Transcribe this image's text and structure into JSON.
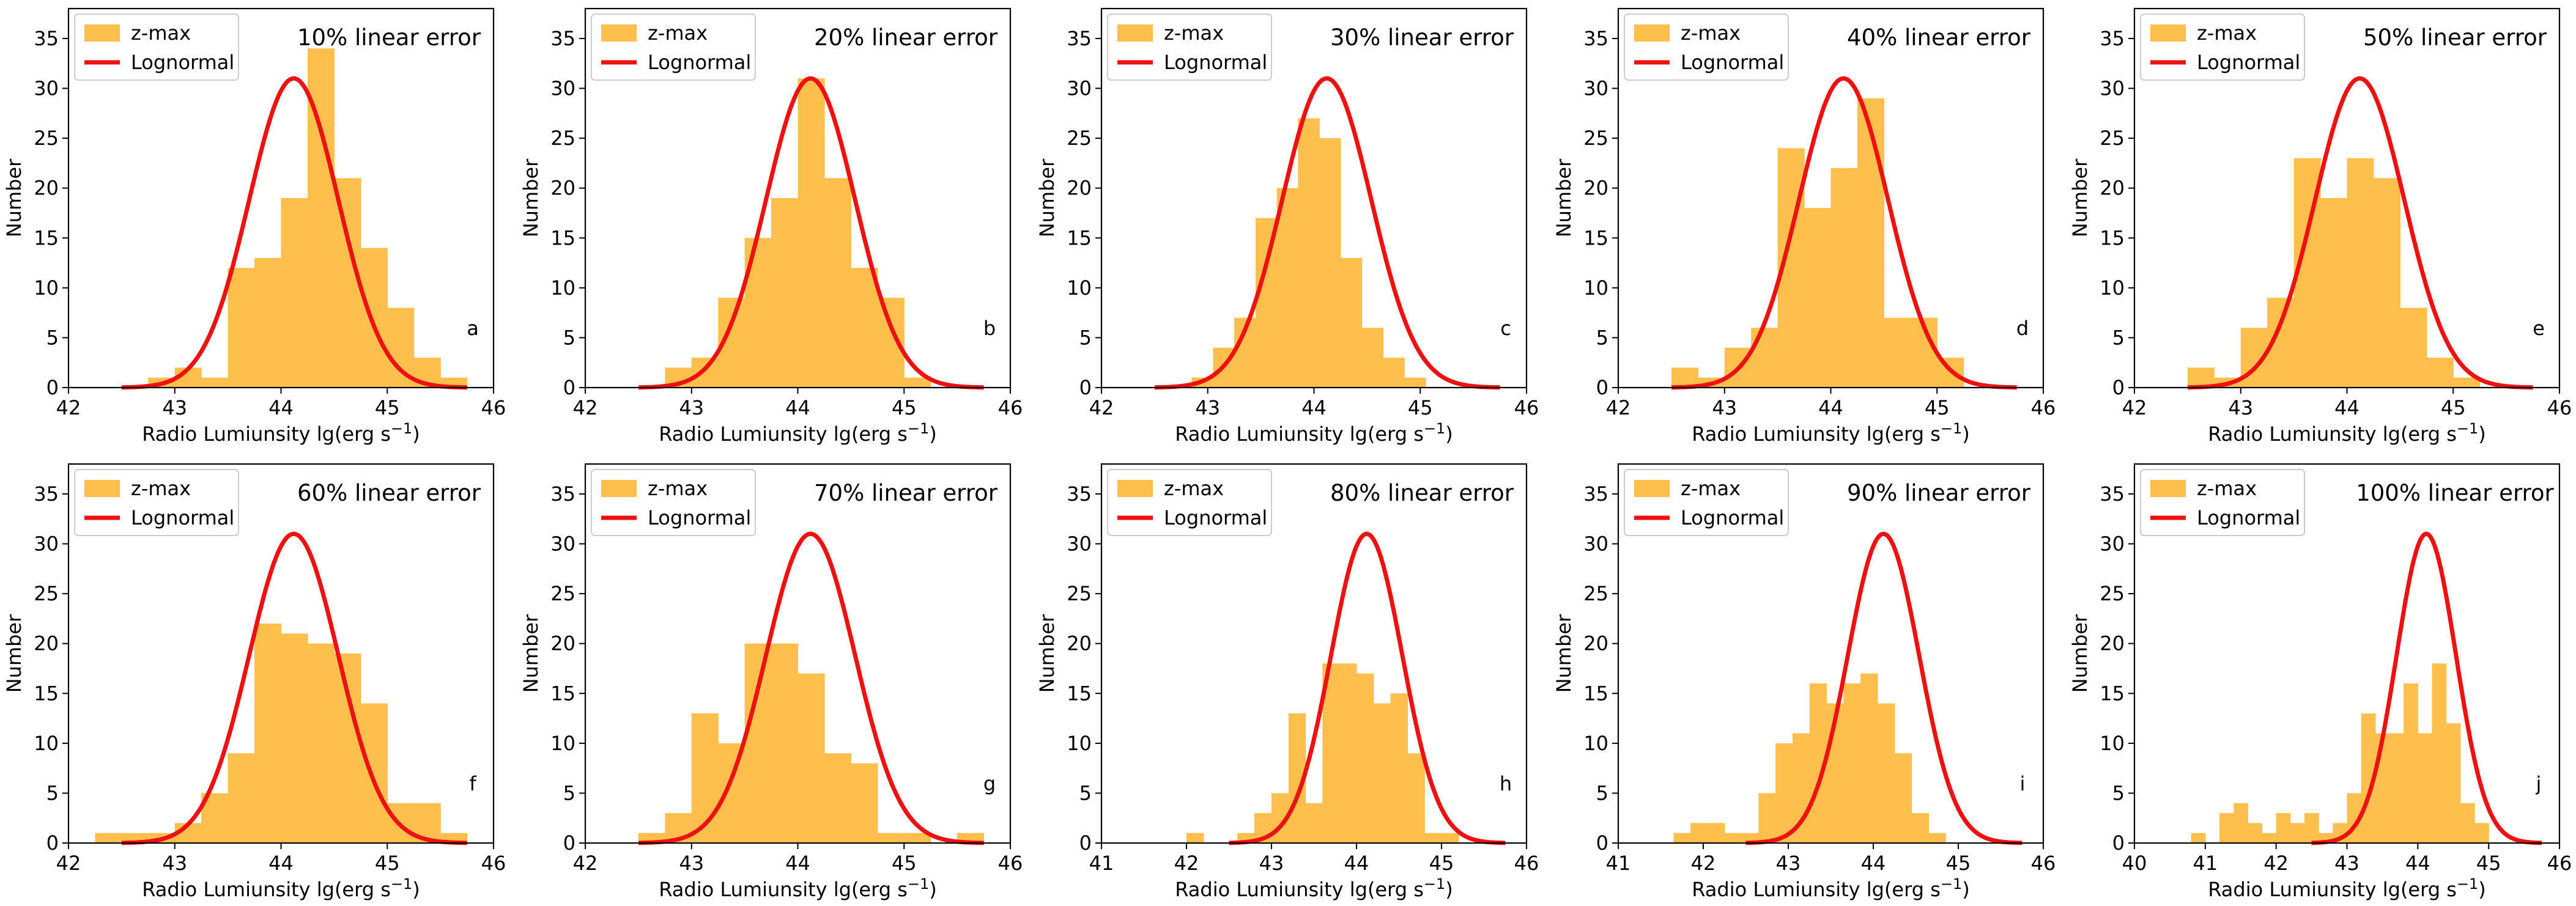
{
  "figure": {
    "rows": 2,
    "cols": 5
  },
  "chart_data": [
    {
      "type": "bar",
      "panel": "a",
      "title": "10% linear error",
      "xlabel": "Radio Lumiunsity lg(erg s⁻¹)",
      "ylabel": "Number",
      "xlim": [
        42,
        46
      ],
      "ylim": [
        0,
        38
      ],
      "xticks": [
        42,
        43,
        44,
        45,
        46
      ],
      "yticks": [
        0,
        5,
        10,
        15,
        20,
        25,
        30,
        35
      ],
      "legend": [
        "z-max",
        "Lognormal"
      ],
      "legend_position": "top-left",
      "bins_start": 42.5,
      "bin_width": 0.25,
      "values": [
        0,
        1,
        2,
        1,
        12,
        13,
        19,
        34,
        21,
        14,
        8,
        3,
        1
      ],
      "curve": {
        "name": "Lognormal",
        "peak": 31,
        "mu": 44.12,
        "sigma": 0.42,
        "x_range": [
          42.5,
          45.75
        ]
      }
    },
    {
      "type": "bar",
      "panel": "b",
      "title": "20% linear error",
      "xlabel": "Radio Lumiunsity lg(erg s⁻¹)",
      "ylabel": "Number",
      "xlim": [
        42,
        46
      ],
      "ylim": [
        0,
        38
      ],
      "xticks": [
        42,
        43,
        44,
        45,
        46
      ],
      "yticks": [
        0,
        5,
        10,
        15,
        20,
        25,
        30,
        35
      ],
      "legend": [
        "z-max",
        "Lognormal"
      ],
      "legend_position": "top-left",
      "bins_start": 42.5,
      "bin_width": 0.25,
      "values": [
        0,
        2,
        3,
        9,
        15,
        19,
        31,
        21,
        12,
        9,
        1
      ],
      "curve": {
        "name": "Lognormal",
        "peak": 31,
        "mu": 44.12,
        "sigma": 0.42,
        "x_range": [
          42.5,
          45.75
        ]
      }
    },
    {
      "type": "bar",
      "panel": "c",
      "title": "30% linear error",
      "xlabel": "Radio Lumiunsity lg(erg s⁻¹)",
      "ylabel": "Number",
      "xlim": [
        42,
        46
      ],
      "ylim": [
        0,
        38
      ],
      "xticks": [
        42,
        43,
        44,
        45,
        46
      ],
      "yticks": [
        0,
        5,
        10,
        15,
        20,
        25,
        30,
        35
      ],
      "legend": [
        "z-max",
        "Lognormal"
      ],
      "legend_position": "top-left",
      "bins_start": 42.85,
      "bin_width": 0.2,
      "values": [
        1,
        4,
        7,
        17,
        20,
        27,
        25,
        13,
        6,
        3,
        1
      ],
      "curve": {
        "name": "Lognormal",
        "peak": 31,
        "mu": 44.12,
        "sigma": 0.42,
        "x_range": [
          42.5,
          45.75
        ]
      }
    },
    {
      "type": "bar",
      "panel": "d",
      "title": "40% linear error",
      "xlabel": "Radio Lumiunsity lg(erg s⁻¹)",
      "ylabel": "Number",
      "xlim": [
        42,
        46
      ],
      "ylim": [
        0,
        38
      ],
      "xticks": [
        42,
        43,
        44,
        45,
        46
      ],
      "yticks": [
        0,
        5,
        10,
        15,
        20,
        25,
        30,
        35
      ],
      "legend": [
        "z-max",
        "Lognormal"
      ],
      "legend_position": "top-left",
      "bins_start": 42.5,
      "bin_width": 0.25,
      "values": [
        2,
        1,
        4,
        6,
        24,
        18,
        22,
        29,
        7,
        7,
        3
      ],
      "curve": {
        "name": "Lognormal",
        "peak": 31,
        "mu": 44.12,
        "sigma": 0.42,
        "x_range": [
          42.5,
          45.75
        ]
      }
    },
    {
      "type": "bar",
      "panel": "e",
      "title": "50% linear error",
      "xlabel": "Radio Lumiunsity lg(erg s⁻¹)",
      "ylabel": "Number",
      "xlim": [
        42,
        46
      ],
      "ylim": [
        0,
        38
      ],
      "xticks": [
        42,
        43,
        44,
        45,
        46
      ],
      "yticks": [
        0,
        5,
        10,
        15,
        20,
        25,
        30,
        35
      ],
      "legend": [
        "z-max",
        "Lognormal"
      ],
      "legend_position": "top-left",
      "bins_start": 42.5,
      "bin_width": 0.25,
      "values": [
        2,
        1,
        6,
        9,
        23,
        19,
        23,
        21,
        8,
        3,
        1
      ],
      "curve": {
        "name": "Lognormal",
        "peak": 31,
        "mu": 44.12,
        "sigma": 0.42,
        "x_range": [
          42.5,
          45.75
        ]
      }
    },
    {
      "type": "bar",
      "panel": "f",
      "title": "60% linear error",
      "xlabel": "Radio Lumiunsity lg(erg s⁻¹)",
      "ylabel": "Number",
      "xlim": [
        42,
        46
      ],
      "ylim": [
        0,
        38
      ],
      "xticks": [
        42,
        43,
        44,
        45,
        46
      ],
      "yticks": [
        0,
        5,
        10,
        15,
        20,
        25,
        30,
        35
      ],
      "legend": [
        "z-max",
        "Lognormal"
      ],
      "legend_position": "top-left",
      "bins_start": 42.25,
      "bin_width": 0.25,
      "values": [
        1,
        1,
        1,
        2,
        5,
        9,
        22,
        21,
        20,
        19,
        14,
        4,
        4,
        1
      ],
      "curve": {
        "name": "Lognormal",
        "peak": 31,
        "mu": 44.12,
        "sigma": 0.42,
        "x_range": [
          42.5,
          45.75
        ]
      }
    },
    {
      "type": "bar",
      "panel": "g",
      "title": "70% linear error",
      "xlabel": "Radio Lumiunsity lg(erg s⁻¹)",
      "ylabel": "Number",
      "xlim": [
        42,
        46
      ],
      "ylim": [
        0,
        38
      ],
      "xticks": [
        42,
        43,
        44,
        45,
        46
      ],
      "yticks": [
        0,
        5,
        10,
        15,
        20,
        25,
        30,
        35
      ],
      "legend": [
        "z-max",
        "Lognormal"
      ],
      "legend_position": "top-left",
      "bins_start": 42.5,
      "bin_width": 0.25,
      "values": [
        1,
        3,
        13,
        10,
        20,
        20,
        17,
        9,
        8,
        1,
        1,
        0,
        1
      ],
      "curve": {
        "name": "Lognormal",
        "peak": 31,
        "mu": 44.12,
        "sigma": 0.42,
        "x_range": [
          42.5,
          45.75
        ]
      }
    },
    {
      "type": "bar",
      "panel": "h",
      "title": "80% linear error",
      "xlabel": "Radio Lumiunsity lg(erg s⁻¹)",
      "ylabel": "Number",
      "xlim": [
        41,
        46
      ],
      "ylim": [
        0,
        38
      ],
      "xticks": [
        41,
        42,
        43,
        44,
        45,
        46
      ],
      "yticks": [
        0,
        5,
        10,
        15,
        20,
        25,
        30,
        35
      ],
      "legend": [
        "z-max",
        "Lognormal"
      ],
      "legend_position": "top-left",
      "bins_start": 42,
      "bin_width": 0.2,
      "values": [
        1,
        0,
        0,
        1,
        3,
        5,
        13,
        4,
        18,
        18,
        17,
        14,
        15,
        9,
        1,
        1
      ],
      "curve": {
        "name": "Lognormal",
        "peak": 31,
        "mu": 44.12,
        "sigma": 0.42,
        "x_range": [
          42.5,
          45.75
        ]
      }
    },
    {
      "type": "bar",
      "panel": "i",
      "title": "90% linear error",
      "xlabel": "Radio Lumiunsity lg(erg s⁻¹)",
      "ylabel": "Number",
      "xlim": [
        41,
        46
      ],
      "ylim": [
        0,
        38
      ],
      "xticks": [
        41,
        42,
        43,
        44,
        45,
        46
      ],
      "yticks": [
        0,
        5,
        10,
        15,
        20,
        25,
        30,
        35
      ],
      "legend": [
        "z-max",
        "Lognormal"
      ],
      "legend_position": "top-left",
      "bins_start": 41.65,
      "bin_width": 0.2,
      "values": [
        1,
        2,
        2,
        1,
        1,
        5,
        10,
        11,
        16,
        14,
        16,
        17,
        14,
        9,
        3,
        1
      ],
      "curve": {
        "name": "Lognormal",
        "peak": 31,
        "mu": 44.12,
        "sigma": 0.42,
        "x_range": [
          42.5,
          45.75
        ]
      }
    },
    {
      "type": "bar",
      "panel": "j",
      "title": "100% linear error",
      "xlabel": "Radio Lumiunsity lg(erg s⁻¹)",
      "ylabel": "Number",
      "xlim": [
        40,
        46
      ],
      "ylim": [
        0,
        38
      ],
      "xticks": [
        40,
        41,
        42,
        43,
        44,
        45,
        46
      ],
      "yticks": [
        0,
        5,
        10,
        15,
        20,
        25,
        30,
        35
      ],
      "legend": [
        "z-max",
        "Lognormal"
      ],
      "legend_position": "top-left",
      "bins_start": 40.8,
      "bin_width": 0.2,
      "values": [
        1,
        0,
        3,
        4,
        2,
        1,
        3,
        2,
        3,
        1,
        2,
        5,
        13,
        11,
        11,
        16,
        11,
        18,
        12,
        4,
        2
      ],
      "curve": {
        "name": "Lognormal",
        "peak": 31,
        "mu": 44.12,
        "sigma": 0.42,
        "x_range": [
          42.5,
          45.75
        ]
      }
    }
  ],
  "colors": {
    "bar": "#ffbf4c",
    "curve": "#ee1111",
    "axis": "#000000",
    "legend_border": "#cccccc"
  }
}
